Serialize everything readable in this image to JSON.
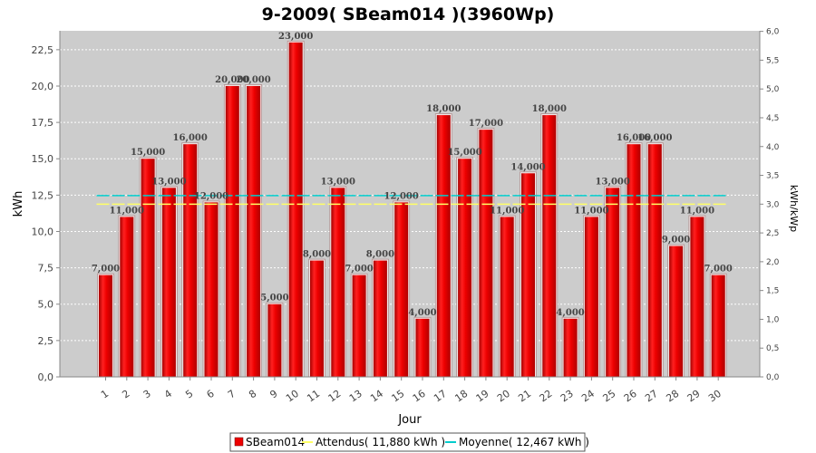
{
  "chart_data": {
    "type": "bar",
    "title": "9-2009( SBeam014 )(3960Wp)",
    "xlabel": "Jour",
    "ylabel": "kWh",
    "ylabel_right": "kWh/kWp",
    "categories": [
      "1",
      "2",
      "3",
      "4",
      "5",
      "6",
      "7",
      "8",
      "9",
      "10",
      "11",
      "12",
      "13",
      "14",
      "15",
      "16",
      "17",
      "18",
      "19",
      "20",
      "21",
      "22",
      "23",
      "24",
      "25",
      "26",
      "27",
      "28",
      "29",
      "30"
    ],
    "series": [
      {
        "name": "SBeam014",
        "color": "#ee0000",
        "values": [
          7,
          11,
          15,
          13,
          16,
          12,
          20,
          20,
          5,
          23,
          8,
          13,
          7,
          8,
          12,
          4,
          18,
          15,
          17,
          11,
          14,
          18,
          4,
          11,
          13,
          16,
          16,
          9,
          11,
          7
        ],
        "labels": [
          "7,000",
          "11,000",
          "15,000",
          "13,000",
          "16,000",
          "12,000",
          "20,000",
          "20,000",
          "5,000",
          "23,000",
          "8,000",
          "13,000",
          "7,000",
          "8,000",
          "12,000",
          "4,000",
          "18,000",
          "15,000",
          "17,000",
          "11,000",
          "14,000",
          "18,000",
          "4,000",
          "11,000",
          "13,000",
          "16,000",
          "16,000",
          "9,000",
          "11,000",
          "7,000"
        ]
      }
    ],
    "reference_lines": [
      {
        "name": "Attendus( 11,880 kWh )",
        "value": 11.88,
        "color": "#ffff66"
      },
      {
        "name": "Moyenne( 12,467 kWh )",
        "value": 12.467,
        "color": "#00cccc"
      }
    ],
    "ylim": [
      0,
      23.8
    ],
    "yticks": [
      "0,0",
      "2,5",
      "5,0",
      "7,5",
      "10,0",
      "12,5",
      "15,0",
      "17,5",
      "20,0",
      "22,5"
    ],
    "ylim_right": [
      0,
      6.01
    ],
    "yticks_right": [
      "0,0",
      "0,5",
      "1,0",
      "1,5",
      "2,0",
      "2,5",
      "3,0",
      "3,5",
      "4,0",
      "4,5",
      "5,0",
      "5,5",
      "6,0"
    ],
    "grid": true,
    "plot_background": "#cccccc",
    "legend_position": "bottom"
  }
}
